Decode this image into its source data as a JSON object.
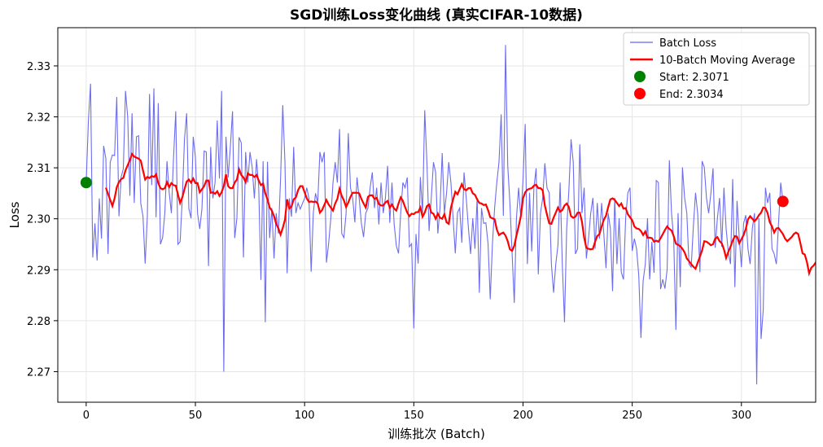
{
  "chart_data": {
    "type": "line",
    "title": "SGD训练Loss变化曲线 (真实CIFAR-10数据)",
    "xlabel": "训练批次 (Batch)",
    "ylabel": "Loss",
    "xlim": [
      -13,
      334
    ],
    "ylim": [
      2.264,
      2.3375
    ],
    "xticks": [
      0,
      50,
      100,
      150,
      200,
      250,
      300
    ],
    "yticks": [
      2.27,
      2.28,
      2.29,
      2.3,
      2.31,
      2.32,
      2.33
    ],
    "ytick_labels": [
      "2.27",
      "2.28",
      "2.29",
      "2.30",
      "2.31",
      "2.32",
      "2.33"
    ],
    "grid": true,
    "legend_position": "top-right",
    "series": [
      {
        "name": "Batch Loss",
        "color": "#6464f0",
        "x_start": 0,
        "values": [
          2.3071,
          2.3191,
          2.3265,
          2.2924,
          2.2991,
          2.2918,
          2.304,
          2.2961,
          2.3143,
          2.3118,
          2.2931,
          2.3111,
          2.3125,
          2.3124,
          2.3239,
          2.3005,
          2.3082,
          2.3098,
          2.3251,
          2.32,
          2.3045,
          2.3207,
          2.3031,
          2.3161,
          2.3163,
          2.303,
          2.3005,
          2.2912,
          2.3005,
          2.3245,
          2.3066,
          2.3256,
          2.3003,
          2.3227,
          2.295,
          2.2963,
          2.3011,
          2.3113,
          2.3052,
          2.3011,
          2.3121,
          2.3211,
          2.295,
          2.2955,
          2.304,
          2.3156,
          2.3207,
          2.302,
          2.3001,
          2.3161,
          2.3121,
          2.301,
          2.298,
          2.302,
          2.3133,
          2.3131,
          2.2907,
          2.3141,
          2.304,
          2.3071,
          2.3193,
          2.3079,
          2.3251,
          2.27,
          2.3161,
          2.3081,
          2.3141,
          2.3211,
          2.2962,
          2.3001,
          2.316,
          2.3149,
          2.2924,
          2.3131,
          2.3071,
          2.3131,
          2.3101,
          2.304,
          2.3117,
          2.3061,
          2.288,
          2.3113,
          2.2797,
          2.3112,
          2.2962,
          2.3021,
          2.2922,
          2.3011,
          2.2971,
          2.3079,
          2.3223,
          2.3111,
          2.2893,
          2.304,
          2.3004,
          2.3141,
          2.3011,
          2.3031,
          2.3019,
          2.303,
          2.304,
          2.3061,
          2.304,
          2.2896,
          2.3012,
          2.305,
          2.3031,
          2.3131,
          2.3111,
          2.3131,
          2.2914,
          2.2951,
          2.3001,
          2.3071,
          2.3111,
          2.3071,
          2.3176,
          2.2971,
          2.2963,
          2.3011,
          2.3168,
          2.3061,
          2.3041,
          2.2993,
          2.3081,
          2.304,
          2.2991,
          2.2964,
          2.3011,
          2.3021,
          2.3061,
          2.3091,
          2.3021,
          2.3061,
          2.2989,
          2.3071,
          2.3011,
          2.3041,
          2.3104,
          2.2992,
          2.3071,
          2.299,
          2.2947,
          2.2932,
          2.3011,
          2.3071,
          2.3061,
          2.3081,
          2.2945,
          2.2951,
          2.2785,
          2.297,
          2.2912,
          2.3082,
          2.3011,
          2.3213,
          2.3111,
          2.2976,
          2.3041,
          2.3111,
          2.3091,
          2.2971,
          2.3021,
          2.3129,
          2.3011,
          2.3051,
          2.3111,
          2.3071,
          2.3001,
          2.2932,
          2.3012,
          2.3021,
          2.2953,
          2.3091,
          2.3041,
          2.2982,
          2.2931,
          2.3001,
          2.2941,
          2.3041,
          2.2855,
          2.3021,
          2.2991,
          2.2992,
          2.2951,
          2.2842,
          2.2951,
          2.3021,
          2.3071,
          2.3111,
          2.3205,
          2.3006,
          2.3341,
          2.3105,
          2.3031,
          2.2933,
          2.2835,
          2.3001,
          2.3061,
          2.3001,
          2.3076,
          2.3186,
          2.2911,
          2.3051,
          2.2936,
          2.3061,
          2.3099,
          2.2891,
          2.3011,
          2.304,
          2.3109,
          2.306,
          2.3051,
          2.2911,
          2.2855,
          2.2911,
          2.2948,
          2.3071,
          2.291,
          2.2797,
          2.2981,
          2.3056,
          2.3156,
          2.3111,
          2.2931,
          2.2941,
          2.3146,
          2.3011,
          2.3061,
          2.2922,
          2.2961,
          2.3011,
          2.3041,
          2.2941,
          2.3031,
          2.2961,
          2.3031,
          2.2971,
          2.2903,
          2.3011,
          2.2981,
          2.2858,
          2.3041,
          2.2911,
          2.3001,
          2.2895,
          2.2881,
          2.3001,
          2.3051,
          2.3061,
          2.2937,
          2.2961,
          2.2941,
          2.2889,
          2.2766,
          2.2878,
          2.2911,
          2.3001,
          2.2881,
          2.2955,
          2.2894,
          2.3075,
          2.3071,
          2.2862,
          2.2881,
          2.2863,
          2.2901,
          2.3115,
          2.3011,
          2.2961,
          2.2782,
          2.3011,
          2.2866,
          2.3101,
          2.3041,
          2.3011,
          2.2911,
          2.2905,
          2.2985,
          2.3051,
          2.3009,
          2.2895,
          2.3113,
          2.3101,
          2.3041,
          2.3011,
          2.3049,
          2.3099,
          2.2943,
          2.3001,
          2.3041,
          2.2945,
          2.3061,
          2.2981,
          2.2934,
          2.2911,
          2.3078,
          2.2866,
          2.3035,
          2.2963,
          2.2905,
          2.2991,
          2.3007,
          2.2941,
          2.2911,
          2.2981,
          2.3011,
          2.2675,
          2.3001,
          2.2764,
          2.2821,
          2.3061,
          2.3031,
          2.3051,
          2.2941,
          2.2931,
          2.2911,
          2.2991,
          2.3071,
          2.3034
        ]
      },
      {
        "name": "10-Batch Moving Average",
        "color": "#ff0000",
        "x_start": 9,
        "values": [
          2.3061,
          2.3049,
          2.3037,
          2.3025,
          2.304,
          2.3062,
          2.3072,
          2.3078,
          2.308,
          2.3095,
          2.3105,
          2.3115,
          2.3127,
          2.3122,
          2.312,
          2.3118,
          2.3114,
          2.3095,
          2.3077,
          2.3082,
          2.308,
          2.3084,
          2.3082,
          2.3087,
          2.307,
          2.306,
          2.3058,
          2.306,
          2.3072,
          2.3062,
          2.307,
          2.3066,
          2.3065,
          2.3048,
          2.3031,
          2.3042,
          2.3058,
          2.3073,
          2.3077,
          2.3071,
          2.3079,
          2.307,
          2.307,
          2.3052,
          2.3058,
          2.3064,
          2.3075,
          2.3075,
          2.3051,
          2.3052,
          2.3049,
          2.3054,
          2.3045,
          2.3052,
          2.3064,
          2.3087,
          2.3064,
          2.306,
          2.306,
          2.3071,
          2.3077,
          2.3097,
          2.3086,
          2.3081,
          2.3072,
          2.3089,
          2.3086,
          2.3086,
          2.3082,
          2.3086,
          2.3075,
          2.3066,
          2.3069,
          2.305,
          2.3038,
          2.3022,
          2.3016,
          2.3005,
          2.299,
          2.2981,
          2.2969,
          2.2982,
          2.2998,
          2.3038,
          2.302,
          2.3024,
          2.3038,
          2.3042,
          2.3056,
          2.3064,
          2.3064,
          2.3052,
          2.304,
          2.3033,
          2.3034,
          2.3033,
          2.3034,
          2.303,
          2.3012,
          2.3017,
          2.3027,
          2.3037,
          2.3028,
          2.3022,
          2.3016,
          2.303,
          2.3039,
          2.3059,
          2.3045,
          2.3036,
          2.3023,
          2.3032,
          2.3043,
          2.3051,
          2.3051,
          2.3051,
          2.305,
          2.3039,
          2.303,
          2.3022,
          2.3043,
          2.3046,
          2.3046,
          2.3039,
          2.3041,
          2.3029,
          2.3026,
          2.3026,
          2.3032,
          2.3035,
          2.3022,
          2.3028,
          2.302,
          2.3016,
          2.303,
          2.3042,
          2.3035,
          2.3023,
          2.3012,
          2.3005,
          2.301,
          2.3009,
          2.3013,
          2.3013,
          2.3022,
          2.3004,
          2.3012,
          2.3025,
          2.3028,
          2.3012,
          2.301,
          2.3,
          2.301,
          2.3002,
          2.3,
          2.3009,
          2.2993,
          2.299,
          2.3022,
          2.3038,
          2.3053,
          2.3048,
          2.3058,
          2.3068,
          2.3058,
          2.3056,
          2.306,
          2.306,
          2.305,
          2.3047,
          2.3038,
          2.3031,
          2.303,
          2.3027,
          2.3028,
          2.3017,
          2.3003,
          2.3001,
          2.2999,
          2.2979,
          2.2968,
          2.2971,
          2.2973,
          2.2967,
          2.2956,
          2.294,
          2.2937,
          2.2947,
          2.2967,
          2.2985,
          2.3005,
          2.304,
          2.3052,
          2.3057,
          2.3059,
          2.306,
          2.3065,
          2.3067,
          2.306,
          2.306,
          2.3056,
          2.3026,
          2.3008,
          2.2991,
          2.299,
          2.3002,
          2.3012,
          2.3022,
          2.3014,
          2.3017,
          2.3026,
          2.303,
          2.3023,
          2.3005,
          2.3002,
          2.3004,
          2.3012,
          2.3012,
          2.2994,
          2.2963,
          2.2943,
          2.2941,
          2.294,
          2.2941,
          2.2955,
          2.2966,
          2.297,
          2.2985,
          2.2998,
          2.3006,
          2.3023,
          2.3038,
          2.304,
          2.3037,
          2.3031,
          2.3025,
          2.303,
          2.302,
          2.3021,
          2.3009,
          2.3003,
          2.2997,
          2.2985,
          2.2981,
          2.298,
          2.2976,
          2.2968,
          2.2975,
          2.2963,
          2.2963,
          2.2962,
          2.2955,
          2.2957,
          2.2955,
          2.2962,
          2.297,
          2.2978,
          2.2985,
          2.298,
          2.2977,
          2.2966,
          2.2951,
          2.2949,
          2.2946,
          2.2941,
          2.2934,
          2.2922,
          2.2917,
          2.2911,
          2.2906,
          2.2902,
          2.2914,
          2.2926,
          2.2938,
          2.2956,
          2.2955,
          2.2952,
          2.2948,
          2.295,
          2.2961,
          2.2964,
          2.2956,
          2.2952,
          2.294,
          2.2923,
          2.2935,
          2.2945,
          2.2957,
          2.2966,
          2.2965,
          2.2952,
          2.296,
          2.2968,
          2.298,
          2.2999,
          2.3005,
          2.3,
          2.2995,
          2.3,
          2.3007,
          2.3012,
          2.3022,
          2.3021,
          2.3011,
          2.2993,
          2.2985,
          2.2973,
          2.2981,
          2.2982,
          2.2976,
          2.297,
          2.2961,
          2.2956,
          2.296,
          2.2964,
          2.297,
          2.2973,
          2.297,
          2.2952,
          2.2932,
          2.293,
          2.2915,
          2.2893,
          2.2904,
          2.2908,
          2.2914,
          2.2915,
          2.2915,
          2.2916,
          2.292,
          2.2938,
          2.295,
          2.298
        ]
      }
    ],
    "markers": [
      {
        "name": "Start: 2.3071",
        "x": 0,
        "y": 2.3071,
        "color": "#008000"
      },
      {
        "name": "End: 2.3034",
        "x": 319,
        "y": 2.3034,
        "color": "#ff0000"
      }
    ]
  }
}
